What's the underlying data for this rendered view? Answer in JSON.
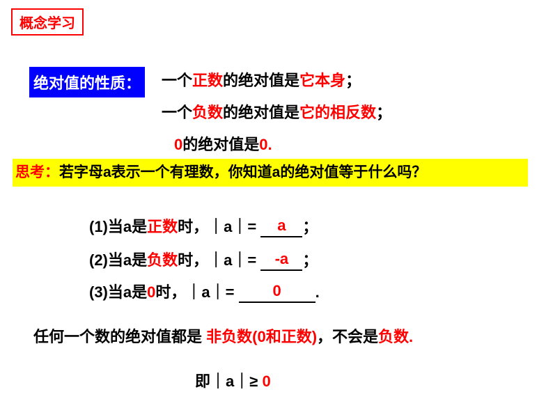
{
  "header": {
    "concept_label": "概念学习"
  },
  "properties": {
    "label": "绝对值的性质：",
    "rule1_pre": "一个",
    "rule1_red1": "正数",
    "rule1_mid": "的绝对值是",
    "rule1_red2": "它本身",
    "rule1_end": "；",
    "rule2_pre": "一个",
    "rule2_red1": "负数",
    "rule2_mid": "的绝对值是",
    "rule2_red2": "它的相反数",
    "rule2_end": "；",
    "rule3_red1": "0",
    "rule3_mid": "的绝对值是",
    "rule3_red2": "0.",
    "rule3_end": ""
  },
  "think": {
    "label": "思考：",
    "text": "若字母a表示一个有理数，你知道a的绝对值等于什么吗？"
  },
  "cases": {
    "c1_pre": "(1)当a是",
    "c1_red": "正数",
    "c1_mid": "时，｜a｜= ",
    "c1_ans": "a",
    "c1_end": "；",
    "c2_pre": "(2)当a是",
    "c2_red": "负数",
    "c2_mid": "时，｜a｜= ",
    "c2_ans": "-a",
    "c2_end": "；",
    "c3_pre": "(3)当a是",
    "c3_red": "0",
    "c3_mid": "时，｜a｜= ",
    "c3_ans": "0",
    "c3_end": "."
  },
  "summary": {
    "pre": "任何一个数的绝对值都是",
    "red1": "非负数(0和正数)",
    "mid": "，不会是",
    "red2": "负数.",
    "final_pre": "即｜a｜≥ ",
    "final_red": "0"
  },
  "colors": {
    "red": "#ff0000",
    "blue": "#0000ff",
    "yellow": "#ffff00",
    "black": "#000000",
    "white": "#ffffff"
  },
  "fontsize_pt": 22
}
